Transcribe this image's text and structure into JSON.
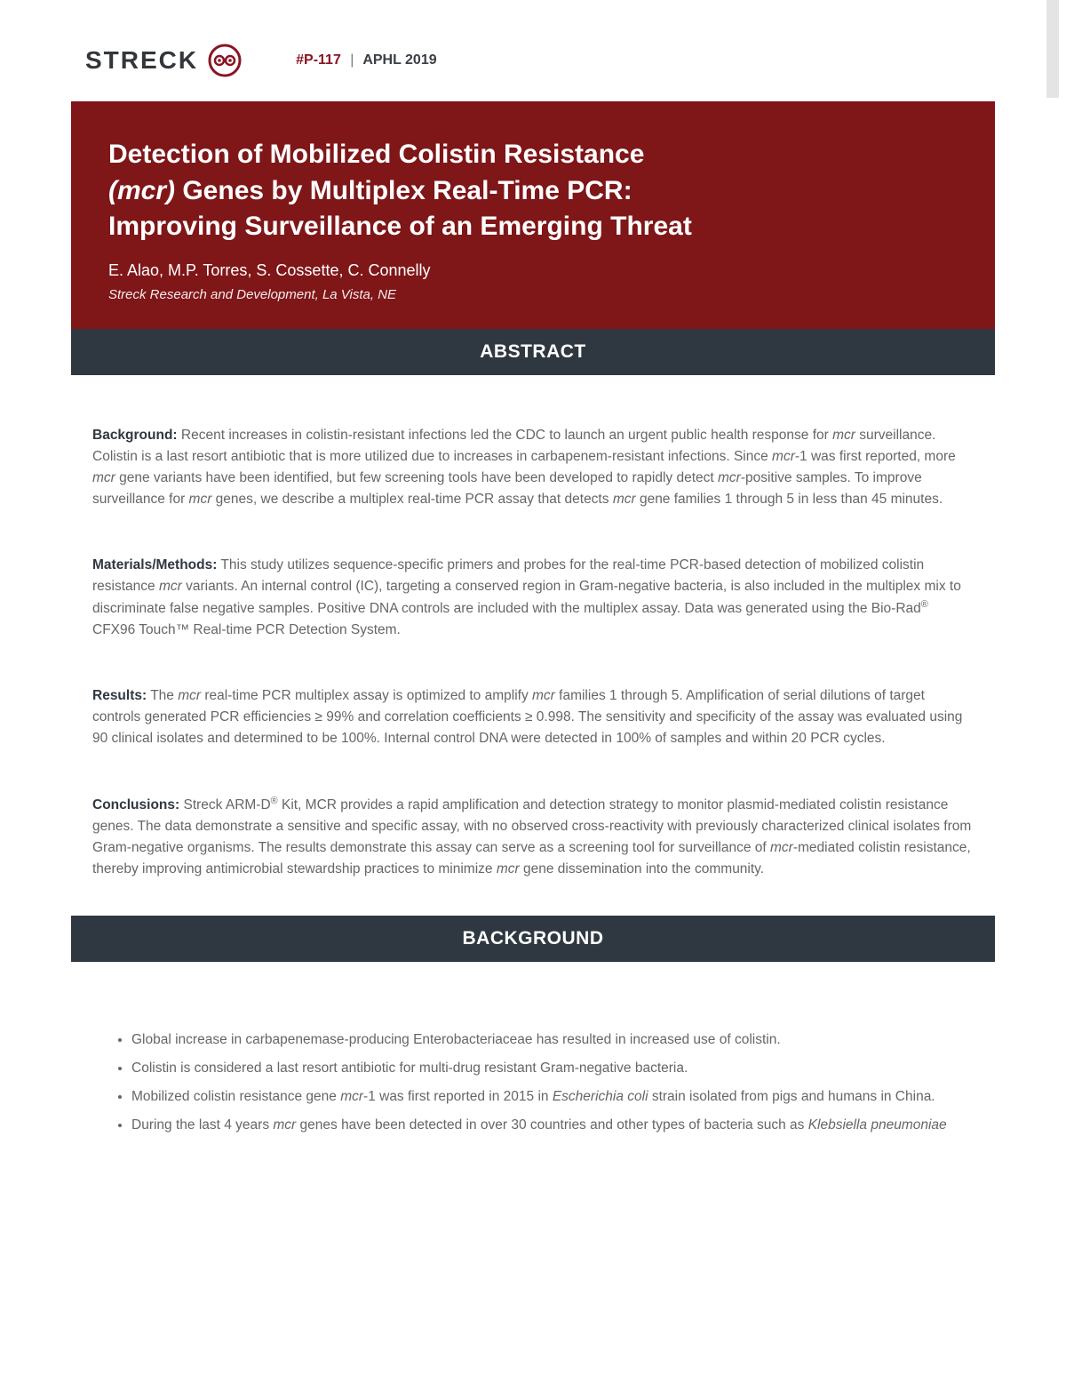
{
  "colors": {
    "hero_bg": "#7f1618",
    "bar_bg": "#2f3841",
    "accent": "#8a1522",
    "text_body": "#666666",
    "text_dark": "#33363b",
    "scroll_track": "#e4e4e4"
  },
  "logo": {
    "text": "STRECK",
    "mark_stroke": "#8a1522"
  },
  "header": {
    "poster_id": "#P-117",
    "separator": "|",
    "conference": "APHL 2019"
  },
  "hero": {
    "title_pre": "Detection of Mobilized Colistin Resistance ",
    "title_ital": "(mcr)",
    "title_post": " Genes by Multiplex Real-Time PCR: Improving Surveillance of an Emerging Threat",
    "authors": "E. Alao, M.P. Torres, S. Cossette, C. Connelly",
    "affiliation": "Streck Research and Development, La Vista, NE"
  },
  "sections": {
    "abstract_label": "ABSTRACT",
    "background_label": "BACKGROUND"
  },
  "abstract": {
    "background": {
      "lead": "Background:",
      "html": "Recent increases in colistin-resistant infections led the CDC to launch an urgent public health response for <span class=\"ital\">mcr</span> surveillance. Colistin is a last resort antibiotic that is more utilized due to increases in carbapenem-resistant infections. Since <span class=\"ital\">mcr</span>-1 was first reported, more <span class=\"ital\">mcr</span> gene variants have been identified, but few screening tools have been developed to rapidly detect <span class=\"ital\">mcr</span>-positive samples. To improve surveillance for <span class=\"ital\">mcr</span> genes, we describe a multiplex real-time PCR assay that detects <span class=\"ital\">mcr</span> gene families 1 through 5 in less than 45 minutes."
    },
    "methods": {
      "lead": "Materials/Methods:",
      "html": "This study utilizes sequence-specific primers and probes for the real-time PCR-based detection of mobilized colistin resistance <span class=\"ital\">mcr</span> variants. An internal control (IC), targeting a conserved region in Gram-negative bacteria, is also included in the multiplex mix to discriminate false negative samples. Positive DNA controls are included with the multiplex assay. Data was generated using the Bio-Rad<sup>®</sup> CFX96 Touch™ Real-time PCR Detection System."
    },
    "results": {
      "lead": "Results:",
      "html": "The <span class=\"ital\">mcr</span> real-time PCR multiplex assay is optimized to amplify <span class=\"ital\">mcr</span> families 1 through 5. Amplification of serial dilutions of target controls generated PCR efficiencies ≥ 99% and correlation coefficients  ≥ 0.998. The sensitivity and specificity of the assay was evaluated using 90 clinical isolates and determined to be 100%. Internal control DNA were detected in 100% of samples and within 20 PCR cycles."
    },
    "conclusions": {
      "lead": "Conclusions:",
      "html": "Streck ARM-D<sup>®</sup> Kit, MCR provides a rapid amplification and detection strategy to monitor plasmid-mediated colistin resistance genes. The data demonstrate a sensitive and specific assay, with no observed cross-reactivity with previously characterized clinical isolates from Gram-negative organisms. The results demonstrate this assay can serve as a screening tool for surveillance of <span class=\"ital\">mcr</span>-mediated colistin resistance, thereby improving antimicrobial stewardship practices to minimize <span class=\"ital\">mcr</span> gene dissemination into the community."
    }
  },
  "background_bullets": [
    "Global increase in carbapenemase-producing Enterobacteriaceae has resulted in increased use of colistin.",
    "Colistin is considered a last resort antibiotic for multi-drug resistant Gram-negative bacteria.",
    "Mobilized colistin resistance gene <span class=\"ital\">mcr</span>-1 was first reported in 2015 in <span class=\"ital\">Escherichia coli</span> strain isolated from pigs and humans in China.",
    "During the last 4 years <span class=\"ital\">mcr</span> genes have been detected in over 30 countries and other types of bacteria such as <span class=\"ital\">Klebsiella pneumoniae</span>"
  ]
}
